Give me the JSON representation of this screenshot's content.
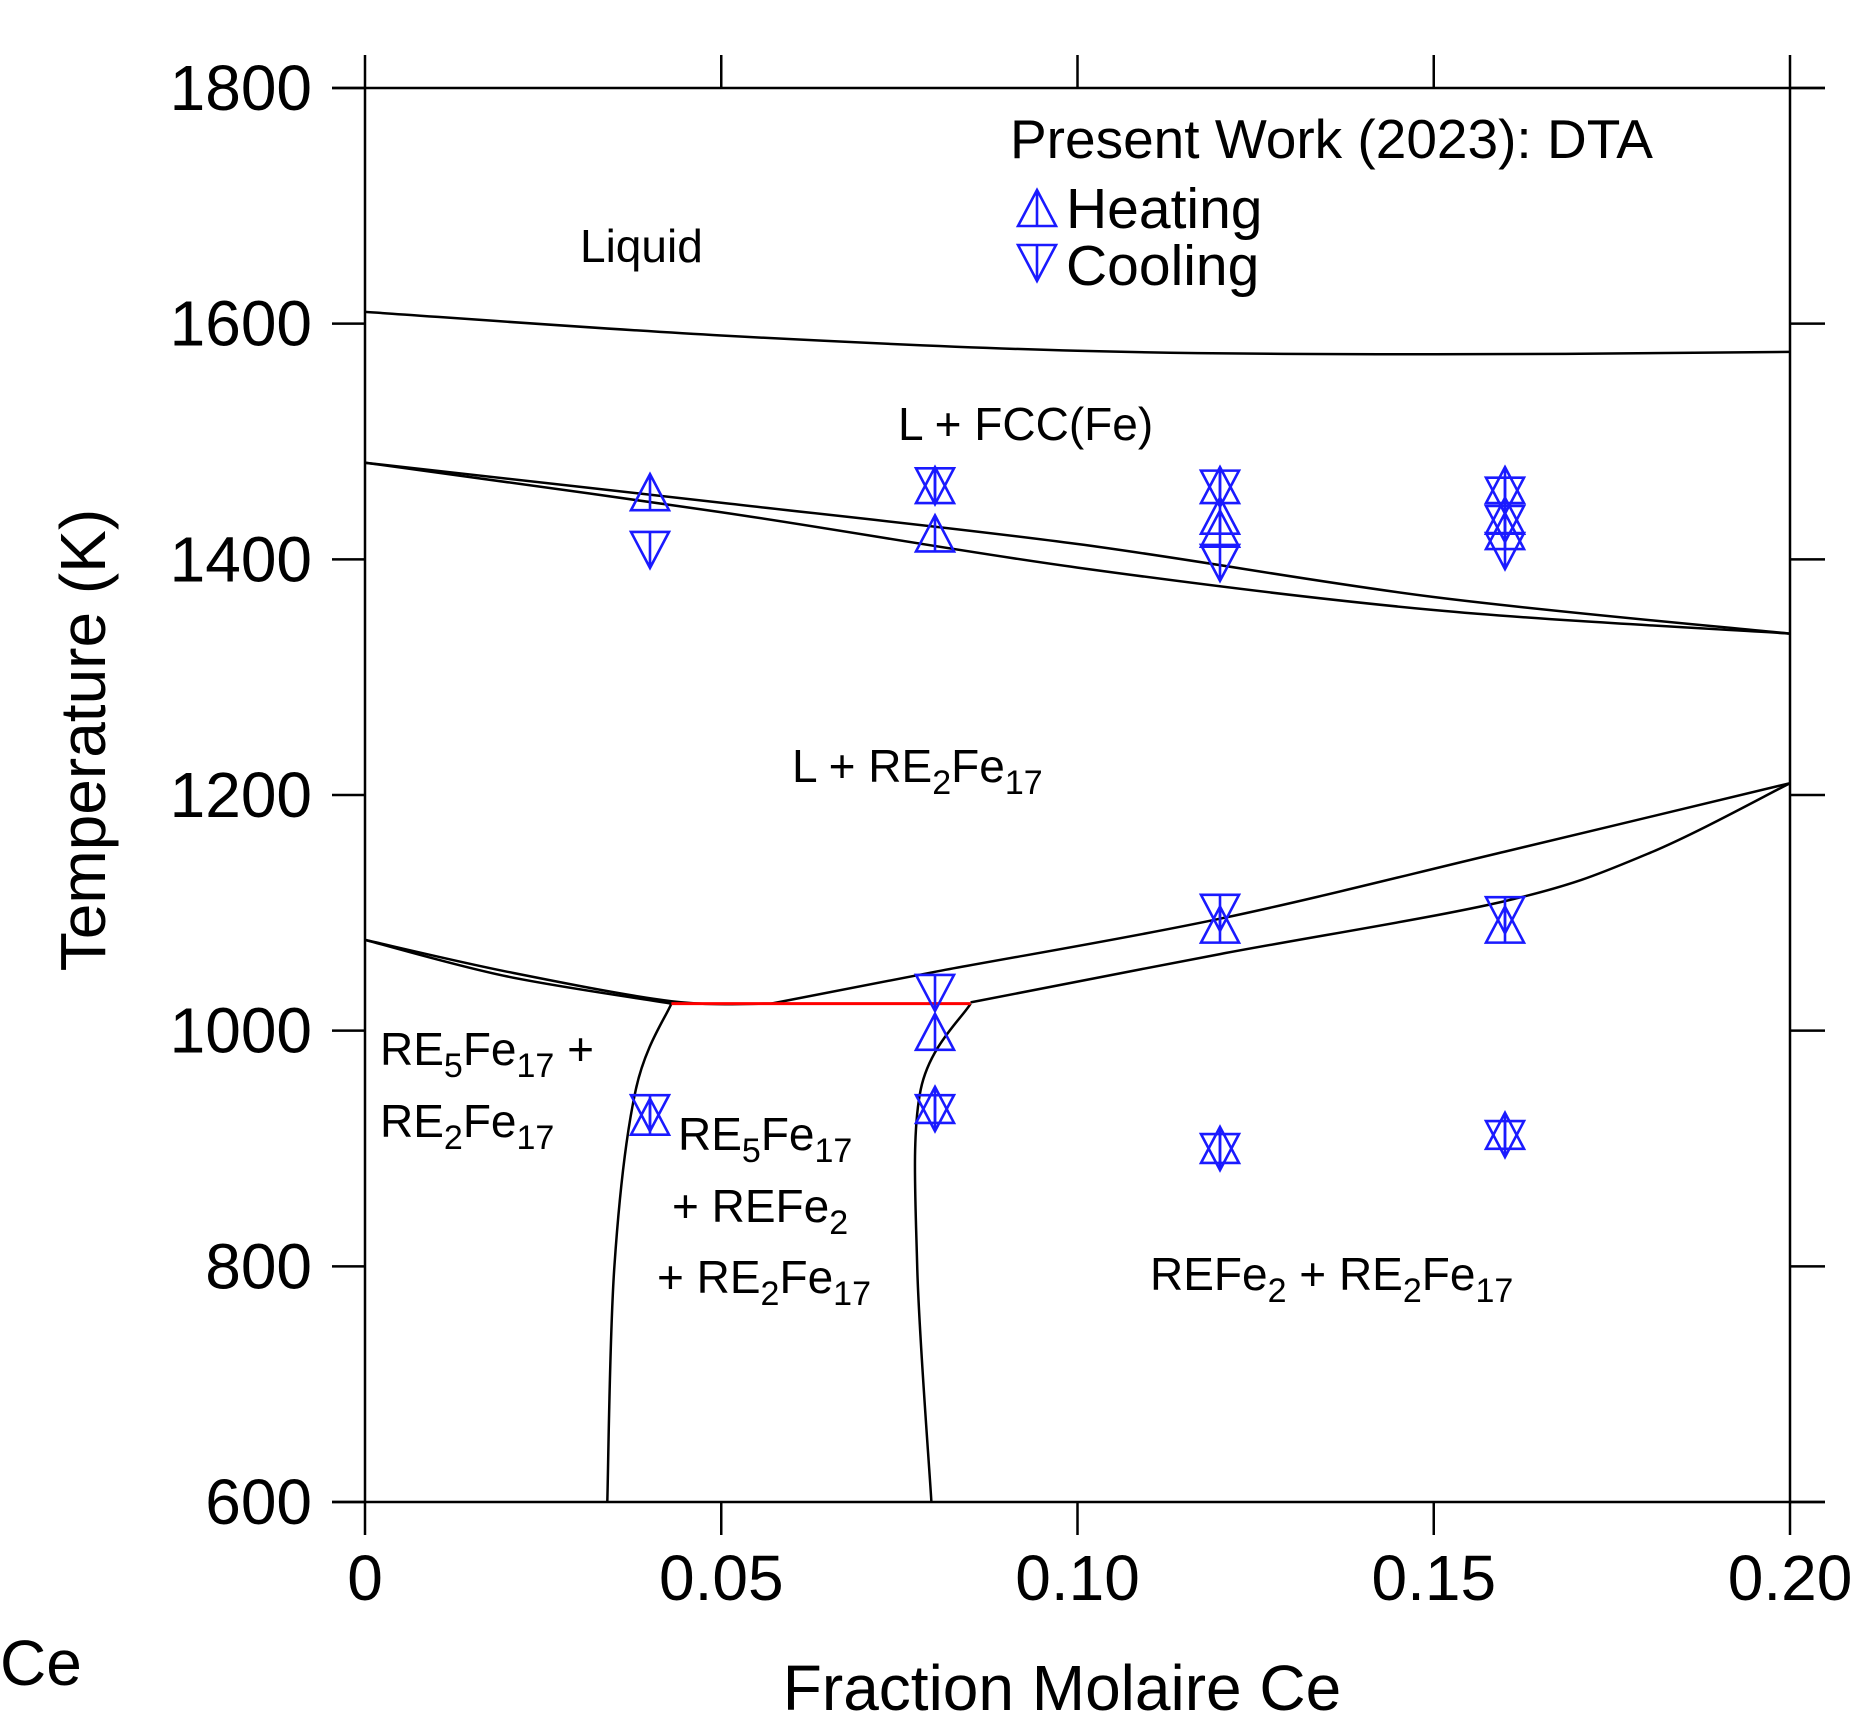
{
  "chart_data": {
    "type": "scatter",
    "title": "",
    "xlabel": "Fraction Molaire Ce",
    "ylabel": "Temperature (K)",
    "corner_label": "Ce",
    "xlim": [
      0,
      0.2
    ],
    "ylim": [
      600,
      1800
    ],
    "x_ticks": [
      0,
      0.05,
      0.1,
      0.15,
      0.2
    ],
    "x_tick_labels": [
      "0",
      "0.05",
      "0.10",
      "0.15",
      "0.20"
    ],
    "y_ticks": [
      600,
      800,
      1000,
      1200,
      1400,
      1600,
      1800
    ],
    "y_tick_labels": [
      "600",
      "800",
      "1000",
      "1200",
      "1400",
      "1600",
      "1800"
    ],
    "grid": false,
    "legend": {
      "title": "Present Work (2023): DTA",
      "position": "top-right",
      "entries": [
        {
          "label": "Heating",
          "marker": "triangle-up"
        },
        {
          "label": "Cooling",
          "marker": "triangle-down"
        }
      ]
    },
    "series": [
      {
        "name": "Heating",
        "marker": "triangle-up",
        "color": "#1a1aff",
        "x": [
          0.04,
          0.04,
          0.08,
          0.08,
          0.08,
          0.08,
          0.12,
          0.12,
          0.12,
          0.12,
          0.12,
          0.16,
          0.16,
          0.16,
          0.16,
          0.16
        ],
        "y": [
          1457,
          927,
          1422,
          999,
          937,
          1463,
          1437,
          1090,
          903,
          1426,
          1463,
          1437,
          1090,
          915,
          1424,
          1463
        ]
      },
      {
        "name": "Cooling",
        "marker": "triangle-down",
        "color": "#1a1aff",
        "x": [
          0.04,
          0.04,
          0.08,
          0.08,
          0.08,
          0.12,
          0.12,
          0.12,
          0.12,
          0.16,
          0.16,
          0.16,
          0.16,
          0.16
        ],
        "y": [
          1408,
          930,
          1462,
          1032,
          930,
          1460,
          1397,
          1100,
          897,
          1454,
          1407,
          1098,
          908,
          1430
        ]
      }
    ],
    "phase_boundaries": [
      {
        "id": "liquidus",
        "points": [
          [
            0,
            1610
          ],
          [
            0.05,
            1590
          ],
          [
            0.1,
            1577
          ],
          [
            0.15,
            1574
          ],
          [
            0.2,
            1576
          ]
        ]
      },
      {
        "id": "fcc-upper",
        "points": [
          [
            0,
            1482
          ],
          [
            0.05,
            1448
          ],
          [
            0.1,
            1413
          ],
          [
            0.15,
            1368
          ],
          [
            0.2,
            1337
          ]
        ]
      },
      {
        "id": "fcc-lower",
        "points": [
          [
            0,
            1482
          ],
          [
            0.05,
            1440
          ],
          [
            0.1,
            1393
          ],
          [
            0.15,
            1357
          ],
          [
            0.2,
            1337
          ]
        ]
      },
      {
        "id": "left-liquidus",
        "points": [
          [
            0,
            1077
          ],
          [
            0.02,
            1050
          ],
          [
            0.043,
            1025
          ],
          [
            0.057,
            1023
          ]
        ]
      },
      {
        "id": "left-inner",
        "points": [
          [
            0,
            1077
          ],
          [
            0.02,
            1046
          ],
          [
            0.043,
            1023
          ]
        ]
      },
      {
        "id": "right-liquidus",
        "points": [
          [
            0.057,
            1023
          ],
          [
            0.08,
            1050
          ],
          [
            0.12,
            1095
          ],
          [
            0.16,
            1152
          ],
          [
            0.2,
            1210
          ]
        ]
      },
      {
        "id": "right-inner",
        "points": [
          [
            0.085,
            1024
          ],
          [
            0.12,
            1065
          ],
          [
            0.16,
            1110
          ],
          [
            0.18,
            1150
          ],
          [
            0.2,
            1210
          ]
        ]
      },
      {
        "id": "left-solvus",
        "points": [
          [
            0.043,
            1023
          ],
          [
            0.038,
            950
          ],
          [
            0.035,
            800
          ],
          [
            0.034,
            600
          ]
        ]
      },
      {
        "id": "right-solvus",
        "points": [
          [
            0.085,
            1023
          ],
          [
            0.078,
            950
          ],
          [
            0.0775,
            800
          ],
          [
            0.0795,
            600
          ]
        ]
      }
    ],
    "invariant_line": {
      "x": [
        0.043,
        0.085
      ],
      "y": 1023,
      "color": "#ff0000"
    },
    "region_labels": {
      "liquid": "Liquid",
      "l_fcc": "L + FCC(Fe)",
      "l_re2fe17": {
        "pre": "L + RE",
        "s1": "2",
        "mid": "Fe",
        "s2": "17"
      },
      "re5_re2": {
        "l1": {
          "a": "RE",
          "s1": "5",
          "b": "Fe",
          "s2": "17",
          "c": " +"
        },
        "l2": {
          "a": "RE",
          "s1": "2",
          "b": "Fe",
          "s2": "17"
        }
      },
      "three_phase": {
        "l1": {
          "a": "RE",
          "s1": "5",
          "b": "Fe",
          "s2": "17"
        },
        "l2": {
          "a": "+ REFe",
          "s1": "2"
        },
        "l3": {
          "a": "+ RE",
          "s1": "2",
          "b": "Fe",
          "s2": "17"
        }
      },
      "refe2_re2": {
        "a": "REFe",
        "s1": "2",
        "b": " + RE",
        "s2": "2",
        "c": "Fe",
        "s3": "17"
      }
    }
  }
}
